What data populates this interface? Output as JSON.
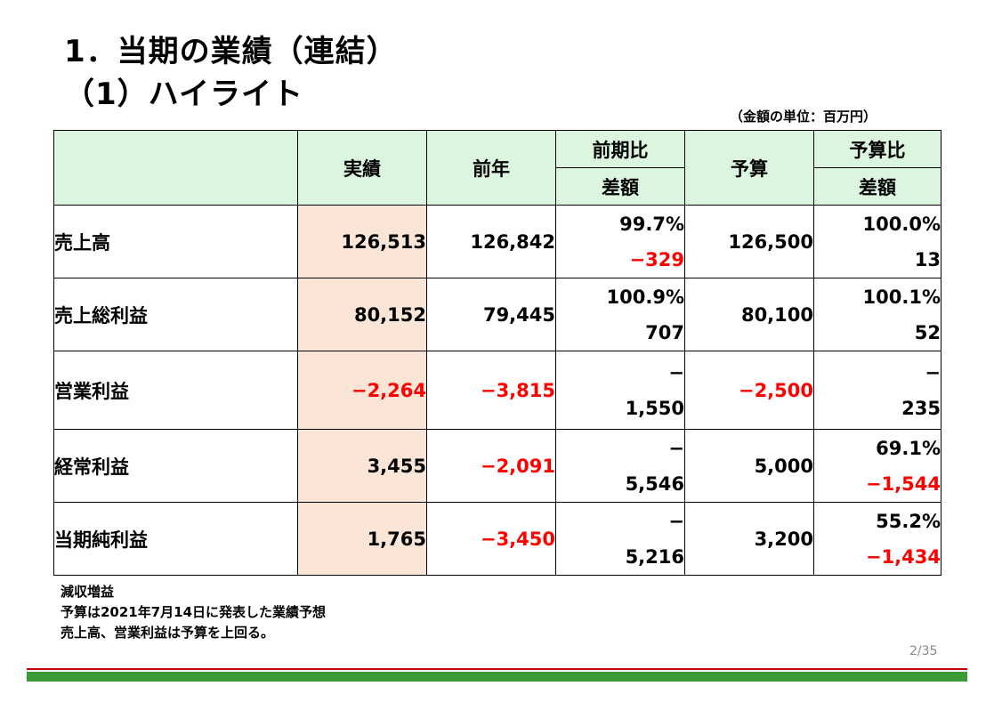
{
  "title_line1": "1．当期の業績（連結）",
  "title_line2": "（1）ハイライト",
  "unit_note": "（金額の単位：百万円）",
  "table": {
    "headers": {
      "actual": "実績",
      "prior": "前年",
      "yoy": "前期比",
      "yoy_diff": "差額",
      "budget": "予算",
      "vs_budget": "予算比",
      "vs_budget_diff": "差額"
    },
    "rows": [
      {
        "label": "売上高",
        "actual": "126,513",
        "prior": "126,842",
        "yoy_pct": "99.7%",
        "yoy_diff": "−329",
        "budget": "126,500",
        "vb_pct": "100.0%",
        "vb_diff": "13"
      },
      {
        "label": "売上総利益",
        "actual": "80,152",
        "prior": "79,445",
        "yoy_pct": "100.9%",
        "yoy_diff": "707",
        "budget": "80,100",
        "vb_pct": "100.1%",
        "vb_diff": "52"
      },
      {
        "label": "営業利益",
        "actual": "−2,264",
        "prior": "−3,815",
        "yoy_pct": "−",
        "yoy_diff": "1,550",
        "budget": "−2,500",
        "vb_pct": "−",
        "vb_diff": "235"
      },
      {
        "label": "経常利益",
        "actual": "3,455",
        "prior": "−2,091",
        "yoy_pct": "−",
        "yoy_diff": "5,546",
        "budget": "5,000",
        "vb_pct": "69.1%",
        "vb_diff": "−1,544"
      },
      {
        "label": "当期純利益",
        "actual": "1,765",
        "prior": "−3,450",
        "yoy_pct": "−",
        "yoy_diff": "5,216",
        "budget": "3,200",
        "vb_pct": "55.2%",
        "vb_diff": "−1,434"
      }
    ]
  },
  "notes": [
    "減収増益",
    "予算は2021年7月14日に発表した業績予想",
    "売上高、営業利益は予算を上回る。"
  ],
  "page_number": "2/35",
  "colors": {
    "header_bg": "#dcf5df",
    "actual_bg": "#fbe5d6",
    "negative": "#ff0000",
    "footer_red": "#c00000",
    "footer_green": "#3a9a35"
  }
}
